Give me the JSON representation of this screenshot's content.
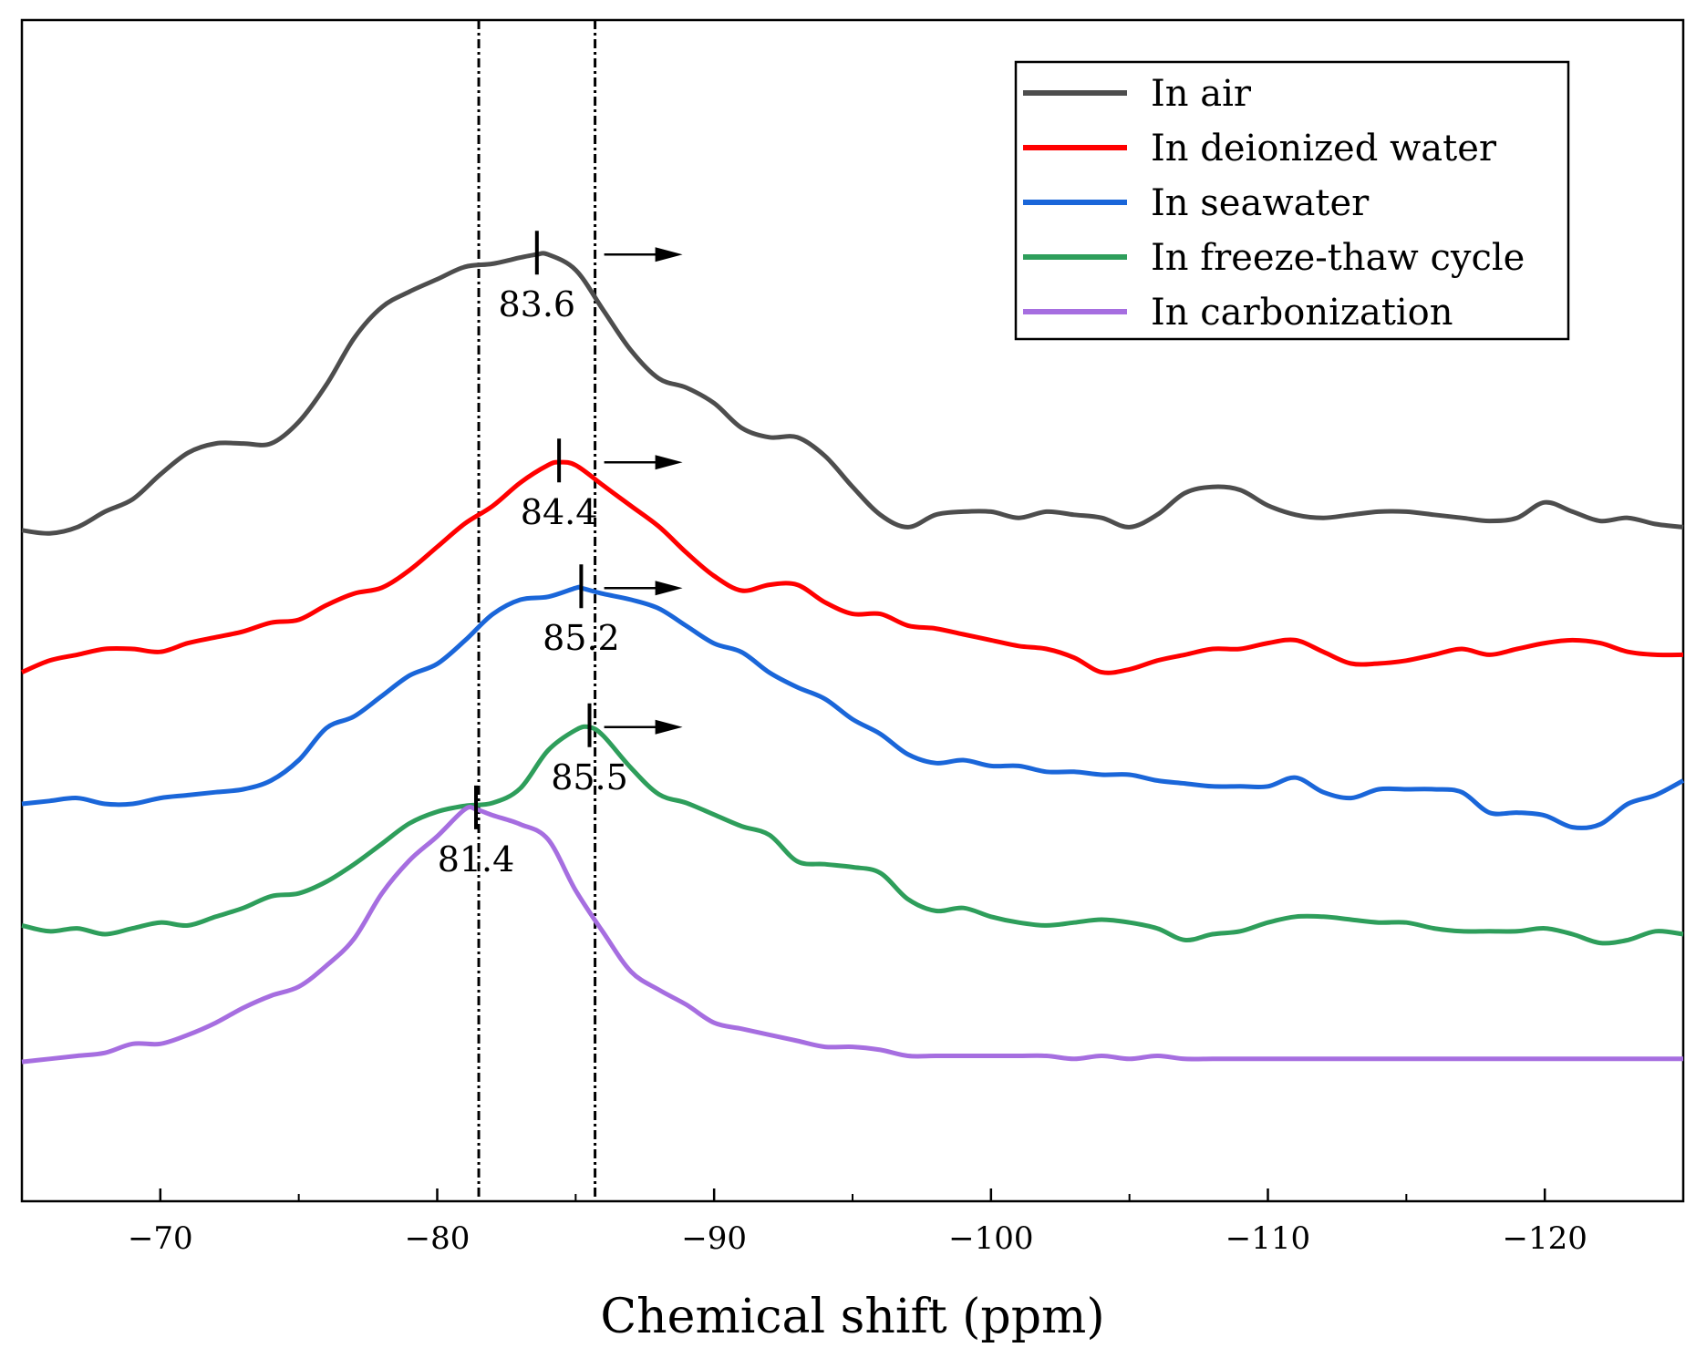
{
  "chart_data": {
    "type": "line",
    "title": "",
    "xlabel": "Chemical shift (ppm)",
    "ylabel": "",
    "xlim": [
      -65,
      -125
    ],
    "xticks": [
      -70,
      -80,
      -90,
      -100,
      -110,
      -120
    ],
    "xtick_labels": [
      "−70",
      "−80",
      "−90",
      "−100",
      "−110",
      "−120"
    ],
    "reference_lines": [
      -81.5,
      -85.7
    ],
    "legend_position": "top-right",
    "series": [
      {
        "name": "In air",
        "color": "#4d4d4d",
        "peak": {
          "x": -83.6,
          "label": "83.6"
        },
        "points": [
          [
            -65,
            0.03
          ],
          [
            -66,
            0.02
          ],
          [
            -67,
            0.04
          ],
          [
            -68,
            0.09
          ],
          [
            -69,
            0.13
          ],
          [
            -70,
            0.21
          ],
          [
            -71,
            0.28
          ],
          [
            -72,
            0.31
          ],
          [
            -73,
            0.31
          ],
          [
            -74,
            0.31
          ],
          [
            -75,
            0.38
          ],
          [
            -76,
            0.5
          ],
          [
            -77,
            0.65
          ],
          [
            -78,
            0.75
          ],
          [
            -79,
            0.8
          ],
          [
            -80,
            0.84
          ],
          [
            -81,
            0.88
          ],
          [
            -82,
            0.89
          ],
          [
            -83,
            0.91
          ],
          [
            -83.6,
            0.92
          ],
          [
            -84,
            0.92
          ],
          [
            -85,
            0.87
          ],
          [
            -86,
            0.74
          ],
          [
            -87,
            0.61
          ],
          [
            -88,
            0.52
          ],
          [
            -89,
            0.49
          ],
          [
            -90,
            0.44
          ],
          [
            -91,
            0.36
          ],
          [
            -92,
            0.33
          ],
          [
            -93,
            0.33
          ],
          [
            -94,
            0.27
          ],
          [
            -95,
            0.17
          ],
          [
            -96,
            0.08
          ],
          [
            -97,
            0.04
          ],
          [
            -98,
            0.08
          ],
          [
            -99,
            0.09
          ],
          [
            -100,
            0.09
          ],
          [
            -101,
            0.07
          ],
          [
            -102,
            0.09
          ],
          [
            -103,
            0.08
          ],
          [
            -104,
            0.07
          ],
          [
            -105,
            0.04
          ],
          [
            -106,
            0.08
          ],
          [
            -107,
            0.15
          ],
          [
            -108,
            0.17
          ],
          [
            -109,
            0.16
          ],
          [
            -110,
            0.11
          ],
          [
            -111,
            0.08
          ],
          [
            -112,
            0.07
          ],
          [
            -113,
            0.08
          ],
          [
            -114,
            0.09
          ],
          [
            -115,
            0.09
          ],
          [
            -116,
            0.08
          ],
          [
            -117,
            0.07
          ],
          [
            -118,
            0.06
          ],
          [
            -119,
            0.07
          ],
          [
            -120,
            0.12
          ],
          [
            -121,
            0.09
          ],
          [
            -122,
            0.06
          ],
          [
            -123,
            0.07
          ],
          [
            -124,
            0.05
          ],
          [
            -125,
            0.04
          ]
        ]
      },
      {
        "name": "In deionized water",
        "color": "#ff0000",
        "peak": {
          "x": -84.4,
          "label": "84.4"
        },
        "points": [
          [
            -65,
            0.02
          ],
          [
            -66,
            0.06
          ],
          [
            -67,
            0.08
          ],
          [
            -68,
            0.1
          ],
          [
            -69,
            0.1
          ],
          [
            -70,
            0.09
          ],
          [
            -71,
            0.12
          ],
          [
            -72,
            0.14
          ],
          [
            -73,
            0.16
          ],
          [
            -74,
            0.19
          ],
          [
            -75,
            0.2
          ],
          [
            -76,
            0.25
          ],
          [
            -77,
            0.29
          ],
          [
            -78,
            0.31
          ],
          [
            -79,
            0.37
          ],
          [
            -80,
            0.45
          ],
          [
            -81,
            0.53
          ],
          [
            -82,
            0.59
          ],
          [
            -83,
            0.67
          ],
          [
            -84,
            0.73
          ],
          [
            -84.4,
            0.74
          ],
          [
            -85,
            0.73
          ],
          [
            -86,
            0.66
          ],
          [
            -87,
            0.59
          ],
          [
            -88,
            0.52
          ],
          [
            -89,
            0.43
          ],
          [
            -90,
            0.35
          ],
          [
            -91,
            0.3
          ],
          [
            -92,
            0.32
          ],
          [
            -93,
            0.32
          ],
          [
            -94,
            0.26
          ],
          [
            -95,
            0.22
          ],
          [
            -96,
            0.22
          ],
          [
            -97,
            0.18
          ],
          [
            -98,
            0.17
          ],
          [
            -99,
            0.15
          ],
          [
            -100,
            0.13
          ],
          [
            -101,
            0.11
          ],
          [
            -102,
            0.1
          ],
          [
            -103,
            0.07
          ],
          [
            -104,
            0.02
          ],
          [
            -105,
            0.03
          ],
          [
            -106,
            0.06
          ],
          [
            -107,
            0.08
          ],
          [
            -108,
            0.1
          ],
          [
            -109,
            0.1
          ],
          [
            -110,
            0.12
          ],
          [
            -111,
            0.13
          ],
          [
            -112,
            0.09
          ],
          [
            -113,
            0.05
          ],
          [
            -114,
            0.05
          ],
          [
            -115,
            0.06
          ],
          [
            -116,
            0.08
          ],
          [
            -117,
            0.1
          ],
          [
            -118,
            0.08
          ],
          [
            -119,
            0.1
          ],
          [
            -120,
            0.12
          ],
          [
            -121,
            0.13
          ],
          [
            -122,
            0.12
          ],
          [
            -123,
            0.09
          ],
          [
            -124,
            0.08
          ],
          [
            -125,
            0.08
          ]
        ]
      },
      {
        "name": "In seawater",
        "color": "#1a66d9",
        "peak": {
          "x": -85.2,
          "label": "85.2"
        },
        "points": [
          [
            -65,
            0.0
          ],
          [
            -66,
            0.01
          ],
          [
            -67,
            0.02
          ],
          [
            -68,
            0.0
          ],
          [
            -69,
            0.0
          ],
          [
            -70,
            0.02
          ],
          [
            -71,
            0.03
          ],
          [
            -72,
            0.04
          ],
          [
            -73,
            0.05
          ],
          [
            -74,
            0.08
          ],
          [
            -75,
            0.15
          ],
          [
            -76,
            0.26
          ],
          [
            -77,
            0.3
          ],
          [
            -78,
            0.37
          ],
          [
            -79,
            0.44
          ],
          [
            -80,
            0.48
          ],
          [
            -81,
            0.56
          ],
          [
            -82,
            0.65
          ],
          [
            -83,
            0.7
          ],
          [
            -84,
            0.71
          ],
          [
            -85,
            0.74
          ],
          [
            -85.2,
            0.74
          ],
          [
            -86,
            0.72
          ],
          [
            -87,
            0.7
          ],
          [
            -88,
            0.67
          ],
          [
            -89,
            0.61
          ],
          [
            -90,
            0.55
          ],
          [
            -91,
            0.52
          ],
          [
            -92,
            0.45
          ],
          [
            -93,
            0.4
          ],
          [
            -94,
            0.36
          ],
          [
            -95,
            0.29
          ],
          [
            -96,
            0.24
          ],
          [
            -97,
            0.17
          ],
          [
            -98,
            0.14
          ],
          [
            -99,
            0.15
          ],
          [
            -100,
            0.13
          ],
          [
            -101,
            0.13
          ],
          [
            -102,
            0.11
          ],
          [
            -103,
            0.11
          ],
          [
            -104,
            0.1
          ],
          [
            -105,
            0.1
          ],
          [
            -106,
            0.08
          ],
          [
            -107,
            0.07
          ],
          [
            -108,
            0.06
          ],
          [
            -109,
            0.06
          ],
          [
            -110,
            0.06
          ],
          [
            -111,
            0.09
          ],
          [
            -112,
            0.04
          ],
          [
            -113,
            0.02
          ],
          [
            -114,
            0.05
          ],
          [
            -115,
            0.05
          ],
          [
            -116,
            0.05
          ],
          [
            -117,
            0.04
          ],
          [
            -118,
            -0.03
          ],
          [
            -119,
            -0.03
          ],
          [
            -120,
            -0.04
          ],
          [
            -121,
            -0.08
          ],
          [
            -122,
            -0.07
          ],
          [
            -123,
            0.0
          ],
          [
            -124,
            0.03
          ],
          [
            -125,
            0.08
          ]
        ]
      },
      {
        "name": "In freeze-thaw cycle",
        "color": "#2e9e5b",
        "peak": {
          "x": -85.5,
          "label": "85.5"
        },
        "points": [
          [
            -65,
            0.03
          ],
          [
            -66,
            0.01
          ],
          [
            -67,
            0.02
          ],
          [
            -68,
            0.0
          ],
          [
            -69,
            0.02
          ],
          [
            -70,
            0.04
          ],
          [
            -71,
            0.03
          ],
          [
            -72,
            0.06
          ],
          [
            -73,
            0.09
          ],
          [
            -74,
            0.13
          ],
          [
            -75,
            0.14
          ],
          [
            -76,
            0.18
          ],
          [
            -77,
            0.24
          ],
          [
            -78,
            0.31
          ],
          [
            -79,
            0.38
          ],
          [
            -80,
            0.42
          ],
          [
            -81,
            0.44
          ],
          [
            -82,
            0.45
          ],
          [
            -83,
            0.5
          ],
          [
            -84,
            0.63
          ],
          [
            -85,
            0.7
          ],
          [
            -85.5,
            0.71
          ],
          [
            -86,
            0.68
          ],
          [
            -87,
            0.57
          ],
          [
            -88,
            0.48
          ],
          [
            -89,
            0.45
          ],
          [
            -90,
            0.41
          ],
          [
            -91,
            0.37
          ],
          [
            -92,
            0.34
          ],
          [
            -93,
            0.25
          ],
          [
            -94,
            0.24
          ],
          [
            -95,
            0.23
          ],
          [
            -96,
            0.21
          ],
          [
            -97,
            0.12
          ],
          [
            -98,
            0.08
          ],
          [
            -99,
            0.09
          ],
          [
            -100,
            0.06
          ],
          [
            -101,
            0.04
          ],
          [
            -102,
            0.03
          ],
          [
            -103,
            0.04
          ],
          [
            -104,
            0.05
          ],
          [
            -105,
            0.04
          ],
          [
            -106,
            0.02
          ],
          [
            -107,
            -0.02
          ],
          [
            -108,
            0.0
          ],
          [
            -109,
            0.01
          ],
          [
            -110,
            0.04
          ],
          [
            -111,
            0.06
          ],
          [
            -112,
            0.06
          ],
          [
            -113,
            0.05
          ],
          [
            -114,
            0.04
          ],
          [
            -115,
            0.04
          ],
          [
            -116,
            0.02
          ],
          [
            -117,
            0.01
          ],
          [
            -118,
            0.01
          ],
          [
            -119,
            0.01
          ],
          [
            -120,
            0.02
          ],
          [
            -121,
            0.0
          ],
          [
            -122,
            -0.03
          ],
          [
            -123,
            -0.02
          ],
          [
            -124,
            0.01
          ],
          [
            -125,
            0.0
          ]
        ]
      },
      {
        "name": "In carbonization",
        "color": "#a66ee0",
        "peak": {
          "x": -81.4,
          "label": "81.4"
        },
        "points": [
          [
            -65,
            0.03
          ],
          [
            -66,
            0.04
          ],
          [
            -67,
            0.05
          ],
          [
            -68,
            0.06
          ],
          [
            -69,
            0.09
          ],
          [
            -70,
            0.09
          ],
          [
            -71,
            0.12
          ],
          [
            -72,
            0.16
          ],
          [
            -73,
            0.21
          ],
          [
            -74,
            0.25
          ],
          [
            -75,
            0.28
          ],
          [
            -76,
            0.35
          ],
          [
            -77,
            0.44
          ],
          [
            -78,
            0.59
          ],
          [
            -79,
            0.7
          ],
          [
            -80,
            0.78
          ],
          [
            -81,
            0.87
          ],
          [
            -81.4,
            0.87
          ],
          [
            -82,
            0.85
          ],
          [
            -83,
            0.82
          ],
          [
            -84,
            0.77
          ],
          [
            -85,
            0.6
          ],
          [
            -86,
            0.46
          ],
          [
            -87,
            0.33
          ],
          [
            -88,
            0.27
          ],
          [
            -89,
            0.22
          ],
          [
            -90,
            0.16
          ],
          [
            -91,
            0.14
          ],
          [
            -92,
            0.12
          ],
          [
            -93,
            0.1
          ],
          [
            -94,
            0.08
          ],
          [
            -95,
            0.08
          ],
          [
            -96,
            0.07
          ],
          [
            -97,
            0.05
          ],
          [
            -98,
            0.05
          ],
          [
            -99,
            0.05
          ],
          [
            -100,
            0.05
          ],
          [
            -101,
            0.05
          ],
          [
            -102,
            0.05
          ],
          [
            -103,
            0.04
          ],
          [
            -104,
            0.05
          ],
          [
            -105,
            0.04
          ],
          [
            -106,
            0.05
          ],
          [
            -107,
            0.04
          ],
          [
            -108,
            0.04
          ],
          [
            -109,
            0.04
          ],
          [
            -110,
            0.04
          ],
          [
            -111,
            0.04
          ],
          [
            -112,
            0.04
          ],
          [
            -113,
            0.04
          ],
          [
            -114,
            0.04
          ],
          [
            -115,
            0.04
          ],
          [
            -116,
            0.04
          ],
          [
            -117,
            0.04
          ],
          [
            -118,
            0.04
          ],
          [
            -119,
            0.04
          ],
          [
            -120,
            0.04
          ],
          [
            -121,
            0.04
          ],
          [
            -122,
            0.04
          ],
          [
            -123,
            0.04
          ],
          [
            -124,
            0.04
          ],
          [
            -125,
            0.04
          ]
        ]
      }
    ]
  }
}
